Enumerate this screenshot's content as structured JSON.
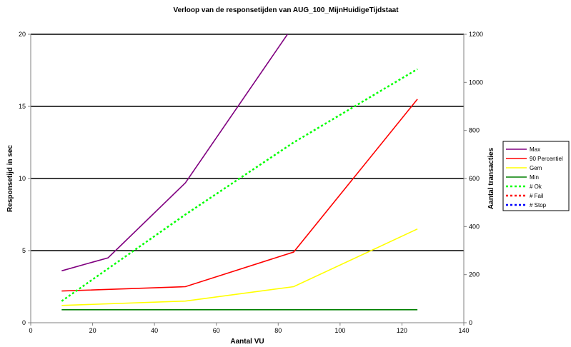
{
  "chart_data": {
    "type": "line",
    "title": "Verloop van de responsetijden van AUG_100_MijnHuidigeTijdstaat",
    "xlabel": "Aantal VU",
    "ylabel": "Responsetijd in sec",
    "y2label": "Aantal transacties",
    "xlim": [
      0,
      140
    ],
    "ylim": [
      0,
      20
    ],
    "y2lim": [
      0,
      1200
    ],
    "x_ticks": [
      "0",
      "20",
      "40",
      "60",
      "80",
      "100",
      "120",
      "140"
    ],
    "y_ticks": [
      "0",
      "5",
      "10",
      "15",
      "20"
    ],
    "y2_ticks": [
      "0",
      "200",
      "400",
      "600",
      "800",
      "1000",
      "1200"
    ],
    "grid": "horizontal major lines at 5, 10, 15, 20",
    "legend_position": "right",
    "series": [
      {
        "name": "Max",
        "axis": "left",
        "color": "#800080",
        "dash": "solid",
        "points": [
          [
            10,
            3.6
          ],
          [
            25,
            4.5
          ],
          [
            50,
            9.7
          ],
          [
            83,
            20.0
          ]
        ]
      },
      {
        "name": "90 Percentiel",
        "axis": "left",
        "color": "#ff0000",
        "dash": "solid",
        "points": [
          [
            10,
            2.2
          ],
          [
            50,
            2.5
          ],
          [
            85,
            4.9
          ],
          [
            125,
            15.5
          ]
        ]
      },
      {
        "name": "Gem",
        "axis": "left",
        "color": "#ffff00",
        "dash": "solid",
        "points": [
          [
            10,
            1.2
          ],
          [
            50,
            1.5
          ],
          [
            85,
            2.5
          ],
          [
            125,
            6.5
          ]
        ]
      },
      {
        "name": "Min",
        "axis": "left",
        "color": "#008000",
        "dash": "solid",
        "points": [
          [
            10,
            0.9
          ],
          [
            50,
            0.9
          ],
          [
            85,
            0.9
          ],
          [
            125,
            0.9
          ]
        ]
      },
      {
        "name": "# Ok",
        "axis": "right",
        "color": "#00ff00",
        "dash": "dotted",
        "points": [
          [
            10,
            90
          ],
          [
            50,
            450
          ],
          [
            85,
            750
          ],
          [
            125,
            1055
          ]
        ]
      },
      {
        "name": "# Fail",
        "axis": "right",
        "color": "#ff0000",
        "dash": "dotted",
        "points": []
      },
      {
        "name": "# Stop",
        "axis": "right",
        "color": "#0000ff",
        "dash": "dotted",
        "points": []
      }
    ]
  }
}
